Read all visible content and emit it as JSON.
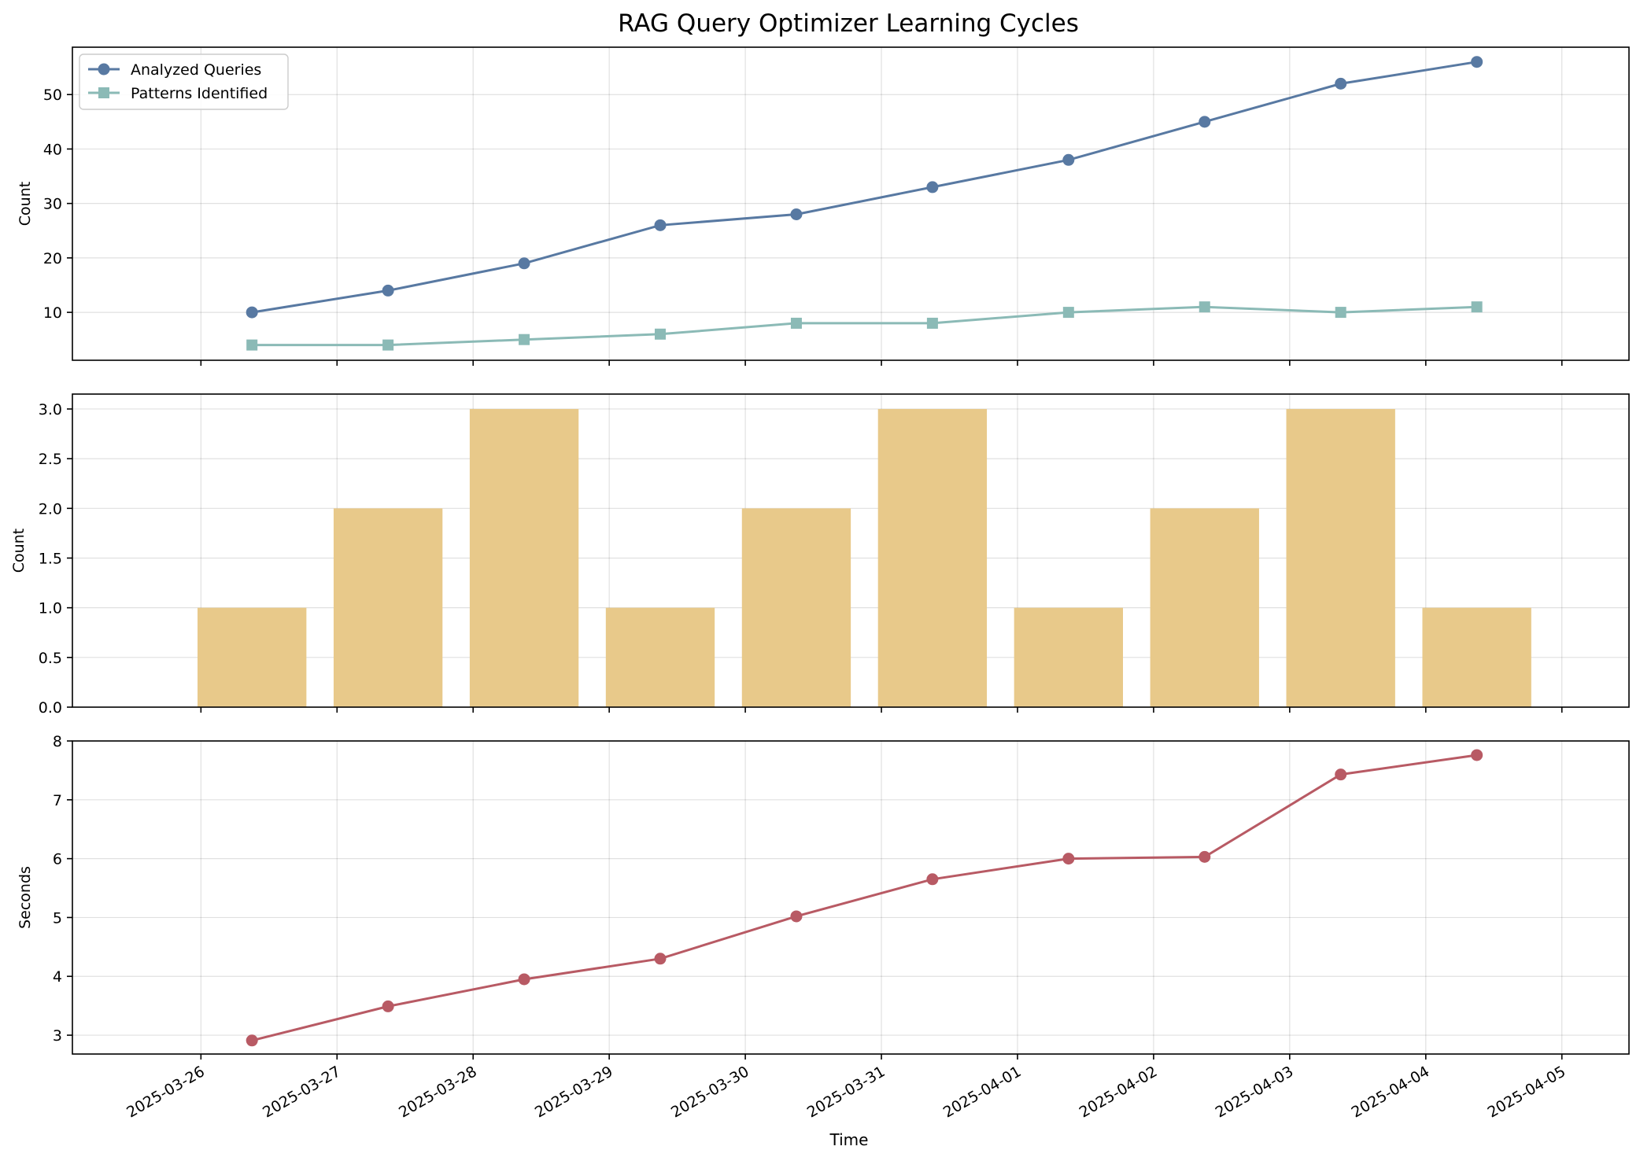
{
  "figure": {
    "title": "RAG Query Optimizer Learning Cycles",
    "xlabel": "Time",
    "x_ticks": [
      "2025-03-26",
      "2025-03-27",
      "2025-03-28",
      "2025-03-29",
      "2025-03-30",
      "2025-03-31",
      "2025-04-01",
      "2025-04-02",
      "2025-04-03",
      "2025-04-04",
      "2025-04-05"
    ]
  },
  "chart_data": [
    {
      "type": "line",
      "ylabel": "Count",
      "x": [
        "2025-03-26 09:00",
        "2025-03-27 09:00",
        "2025-03-28 09:00",
        "2025-03-29 09:00",
        "2025-03-30 09:00",
        "2025-03-31 09:00",
        "2025-04-01 09:00",
        "2025-04-02 09:00",
        "2025-04-03 09:00",
        "2025-04-04 09:00"
      ],
      "ylim": [
        1.2,
        58.7
      ],
      "y_ticks": [
        10,
        20,
        30,
        40,
        50
      ],
      "grid": true,
      "legend": "top-left",
      "series": [
        {
          "name": "Analyzed Queries",
          "marker": "circle",
          "color": "#5879a2",
          "values": [
            10,
            14,
            19,
            26,
            28,
            33,
            38,
            45,
            52,
            56
          ]
        },
        {
          "name": "Patterns Identified",
          "marker": "square",
          "color": "#8bbab6",
          "values": [
            4,
            4,
            5,
            6,
            8,
            8,
            10,
            11,
            10,
            11
          ]
        }
      ]
    },
    {
      "type": "bar",
      "ylabel": "Count",
      "x": [
        "2025-03-26 09:00",
        "2025-03-27 09:00",
        "2025-03-28 09:00",
        "2025-03-29 09:00",
        "2025-03-30 09:00",
        "2025-03-31 09:00",
        "2025-04-01 09:00",
        "2025-04-02 09:00",
        "2025-04-03 09:00",
        "2025-04-04 09:00"
      ],
      "values": [
        1,
        2,
        3,
        1,
        2,
        3,
        1,
        2,
        3,
        1
      ],
      "color": "#e8c98a",
      "ylim": [
        0,
        3.15
      ],
      "y_ticks": [
        0.0,
        0.5,
        1.0,
        1.5,
        2.0,
        2.5,
        3.0
      ],
      "y_tick_labels": [
        "0.0",
        "0.5",
        "1.0",
        "1.5",
        "2.0",
        "2.5",
        "3.0"
      ],
      "grid": true
    },
    {
      "type": "line",
      "ylabel": "Seconds",
      "x": [
        "2025-03-26 09:00",
        "2025-03-27 09:00",
        "2025-03-28 09:00",
        "2025-03-29 09:00",
        "2025-03-30 09:00",
        "2025-03-31 09:00",
        "2025-04-01 09:00",
        "2025-04-02 09:00",
        "2025-04-03 09:00",
        "2025-04-04 09:00"
      ],
      "ylim": [
        2.68,
        8.0
      ],
      "y_ticks": [
        3,
        4,
        5,
        6,
        7,
        8
      ],
      "grid": true,
      "series": [
        {
          "marker": "circle",
          "color": "#b85a64",
          "values": [
            2.91,
            3.49,
            3.95,
            4.3,
            5.02,
            5.65,
            6.0,
            6.03,
            7.43,
            7.76
          ]
        }
      ]
    }
  ]
}
